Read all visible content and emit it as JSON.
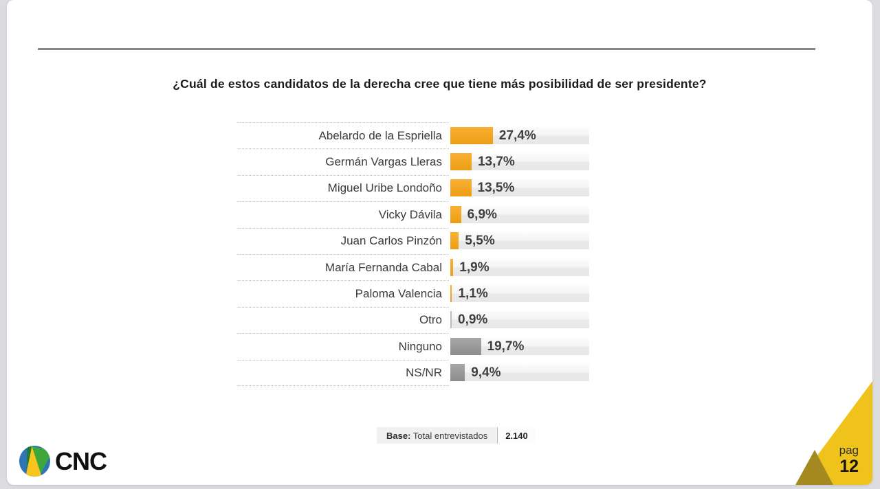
{
  "frame": {
    "background": "#dcdce0",
    "slide_background": "#ffffff",
    "divider_color": "#85858a"
  },
  "chart_data": {
    "type": "bar",
    "orientation": "horizontal",
    "title": "¿Cuál de estos candidatos de la derecha cree que tiene más posibilidad de ser presidente?",
    "value_suffix": "%",
    "xlim": [
      0,
      89
    ],
    "legend": "none",
    "grid": "dotted row separators in label column only",
    "rows": [
      {
        "label": "Abelardo de la Espriella",
        "value": 27.4,
        "display": "27,4%",
        "color": "orange"
      },
      {
        "label": "Germán Vargas Lleras",
        "value": 13.7,
        "display": "13,7%",
        "color": "orange"
      },
      {
        "label": "Miguel Uribe Londoño",
        "value": 13.5,
        "display": "13,5%",
        "color": "orange"
      },
      {
        "label": "Vicky Dávila",
        "value": 6.9,
        "display": "6,9%",
        "color": "orange"
      },
      {
        "label": "Juan Carlos Pinzón",
        "value": 5.5,
        "display": "5,5%",
        "color": "orange"
      },
      {
        "label": "María Fernanda Cabal",
        "value": 1.9,
        "display": "1,9%",
        "color": "orange"
      },
      {
        "label": "Paloma Valencia",
        "value": 1.1,
        "display": "1,1%",
        "color": "orange"
      },
      {
        "label": "Otro",
        "value": 0.9,
        "display": "0,9%",
        "color": "neutral"
      },
      {
        "label": "Ninguno",
        "value": 19.7,
        "display": "19,7%",
        "color": "gray"
      },
      {
        "label": "NS/NR",
        "value": 9.4,
        "display": "9,4%",
        "color": "gray"
      }
    ],
    "colors": {
      "orange_top": "#F9B032",
      "orange_bottom": "#EC9D15",
      "gray_top": "#A7A7A7",
      "gray_bottom": "#8C8C8C",
      "neutral": "#BDBDBD",
      "track_top": "#FAFAFA",
      "track_bottom": "#E8E8E8",
      "value_text": "#3F3F3F",
      "label_text": "#3A3A3A"
    }
  },
  "base": {
    "label_bold": "Base:",
    "label_rest": " Total entrevistados",
    "value": "2.140"
  },
  "footer": {
    "logo_text": "CNC",
    "page_label": "pag",
    "page_number": "12",
    "corner_yellow": "#EFC31C",
    "corner_olive": "#A3891F",
    "logo_colors": {
      "blue": "#2E74B9",
      "green": "#3FA63C",
      "dark_green": "#1E7A33",
      "yellow": "#F7C51E"
    }
  }
}
